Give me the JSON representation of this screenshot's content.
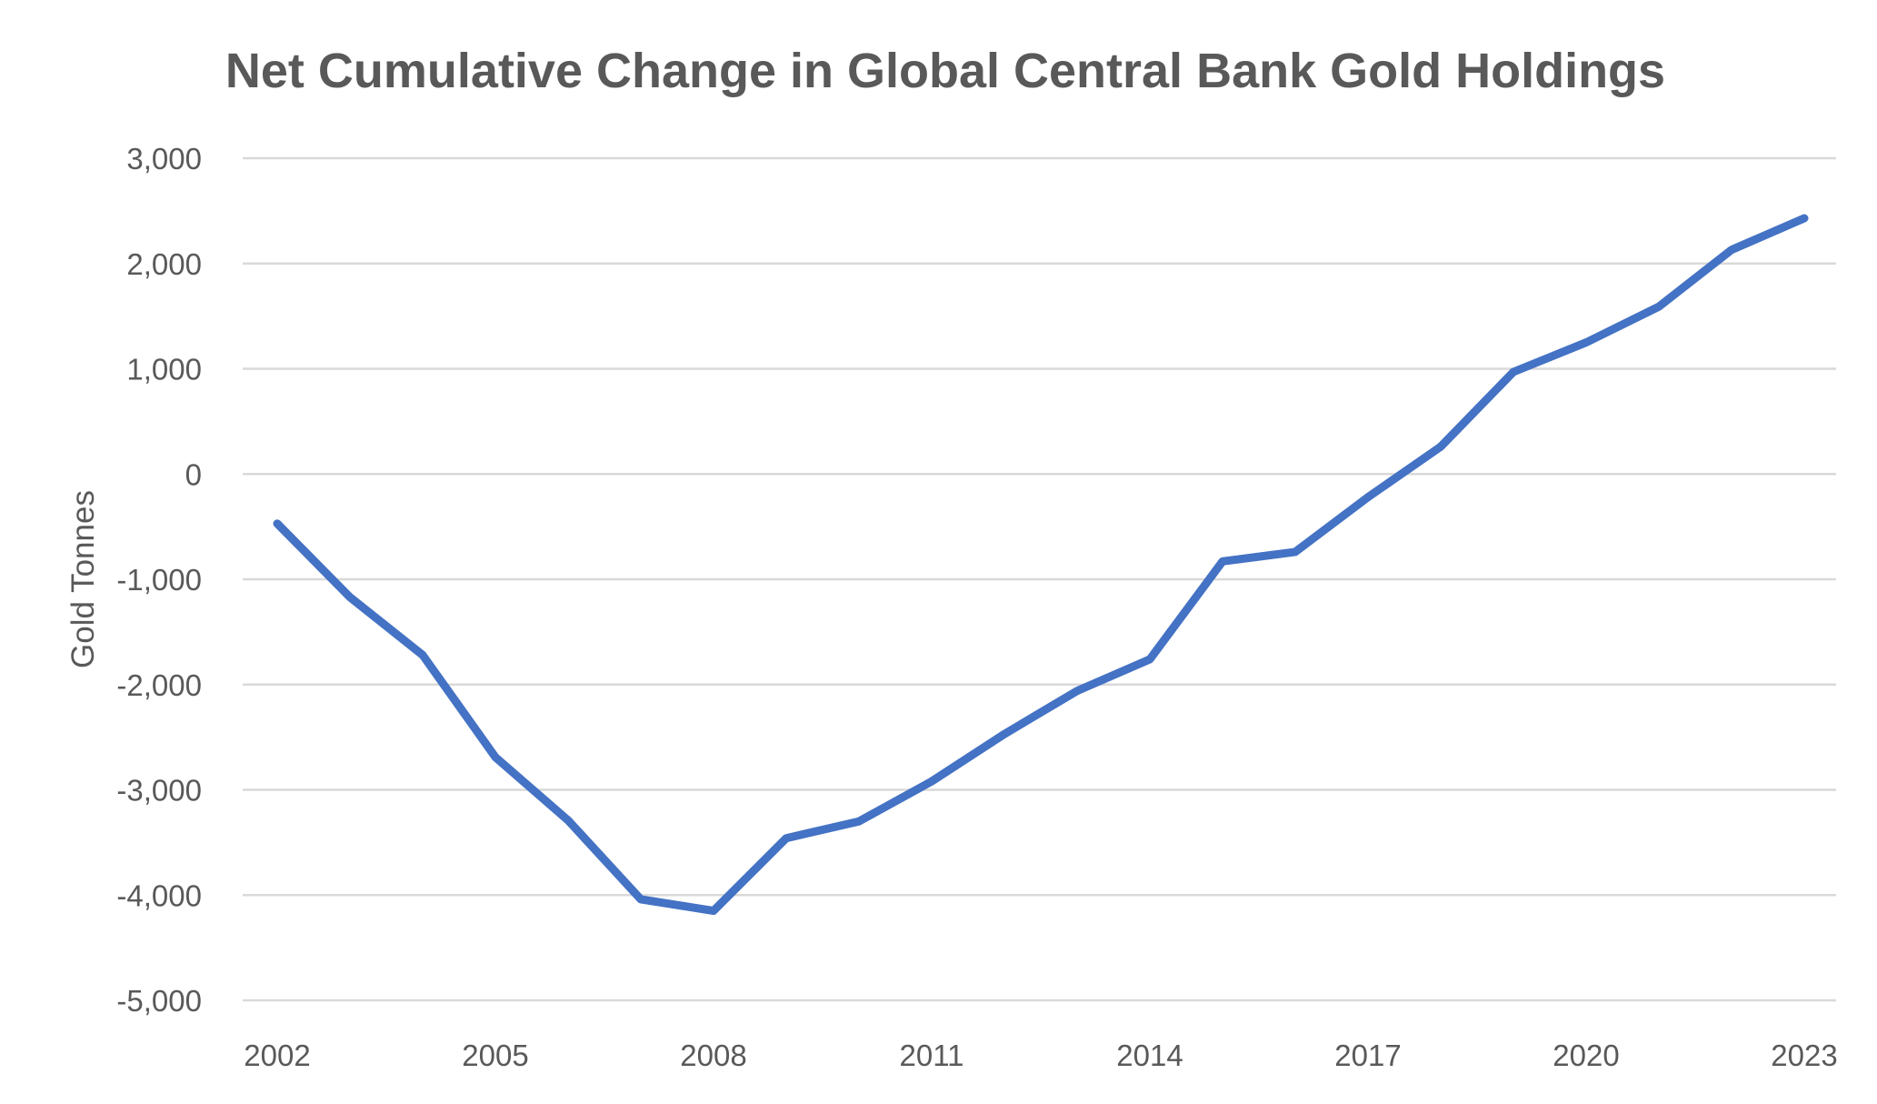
{
  "chart_data": {
    "type": "line",
    "title": "Net Cumulative Change in Global Central Bank Gold Holdings",
    "xlabel": "",
    "ylabel": "Gold Tonnes",
    "x": [
      2002,
      2003,
      2004,
      2005,
      2006,
      2007,
      2008,
      2009,
      2010,
      2011,
      2012,
      2013,
      2014,
      2015,
      2016,
      2017,
      2018,
      2019,
      2020,
      2021,
      2022,
      2023
    ],
    "x_tick_labels": [
      "2002",
      "2005",
      "2008",
      "2011",
      "2014",
      "2017",
      "2020",
      "2023"
    ],
    "series": [
      {
        "values": [
          -470,
          -1170,
          -1720,
          -2690,
          -3290,
          -4040,
          -4150,
          -3460,
          -3300,
          -2920,
          -2470,
          -2060,
          -1760,
          -830,
          -740,
          -220,
          260,
          970,
          1250,
          1590,
          2130,
          2430
        ]
      }
    ],
    "ylim": [
      -5000,
      3000
    ],
    "y_ticks": [
      3000,
      2000,
      1000,
      0,
      -1000,
      -2000,
      -3000,
      -4000,
      -5000
    ],
    "y_tick_labels": [
      "3,000",
      "2,000",
      "1,000",
      "0",
      "-1,000",
      "-2,000",
      "-3,000",
      "-4,000",
      "-5,000"
    ],
    "grid": true,
    "legend": "none",
    "colors": {
      "line": "#4472c4",
      "grid": "#d9d9d9",
      "text": "#595959"
    }
  }
}
